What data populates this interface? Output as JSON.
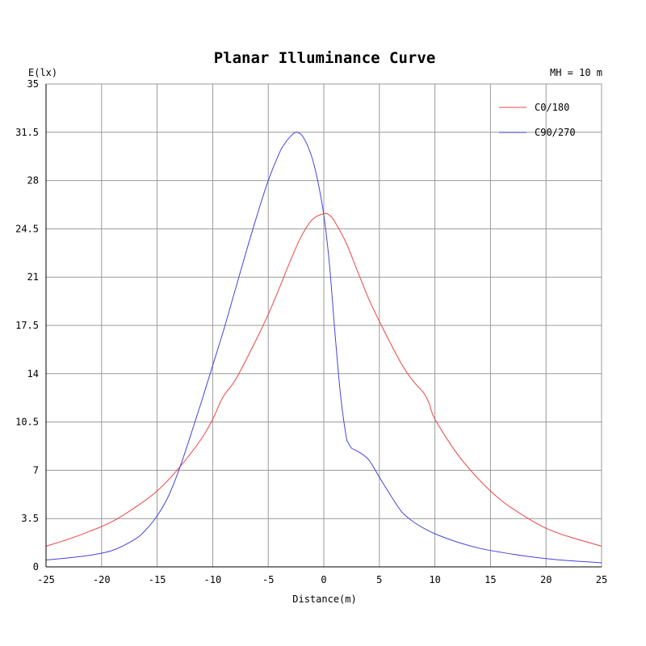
{
  "chart_data": {
    "type": "line",
    "title": "Planar Illuminance Curve",
    "ylabel": "E(lx)",
    "xlabel": "Distance(m)",
    "annotation": "MH = 10 m",
    "xlim": [
      -25,
      25
    ],
    "ylim": [
      0,
      35
    ],
    "xticks": [
      -25,
      -20,
      -15,
      -10,
      -5,
      0,
      5,
      10,
      15,
      20,
      25
    ],
    "yticks": [
      0,
      3.5,
      7,
      10.5,
      14,
      17.5,
      21,
      24.5,
      28,
      31.5,
      35
    ],
    "grid": true,
    "legend_position": "top-right",
    "colors": {
      "c0_180": "#ee4444",
      "c90_270": "#4444dd",
      "grid": "#999999",
      "axis": "#000000"
    },
    "series": [
      {
        "name": "C0/180",
        "color": "#ee4444",
        "x": [
          -25,
          -23,
          -21,
          -19,
          -17,
          -15,
          -13,
          -11,
          -10,
          -9.5,
          -9,
          -8,
          -7,
          -6,
          -5,
          -4,
          -3,
          -2,
          -1,
          0,
          0.5,
          1,
          2,
          3,
          4,
          5,
          6,
          7,
          8,
          9,
          9.5,
          10,
          12,
          14,
          16,
          18,
          20,
          22,
          25
        ],
        "y": [
          1.5,
          2.0,
          2.6,
          3.3,
          4.3,
          5.5,
          7.2,
          9.3,
          10.7,
          11.6,
          12.4,
          13.5,
          15.0,
          16.6,
          18.3,
          20.2,
          22.2,
          24.0,
          25.2,
          25.6,
          25.5,
          25.0,
          23.5,
          21.5,
          19.5,
          17.8,
          16.2,
          14.7,
          13.5,
          12.6,
          11.8,
          10.7,
          8.2,
          6.3,
          4.8,
          3.7,
          2.8,
          2.2,
          1.5
        ]
      },
      {
        "name": "C90/270",
        "color": "#4444dd",
        "x": [
          -25,
          -23,
          -21,
          -19,
          -17,
          -16,
          -15,
          -14,
          -13,
          -12,
          -11,
          -10,
          -9,
          -8,
          -7,
          -6,
          -5,
          -4,
          -3.5,
          -3,
          -2.5,
          -2,
          -1.5,
          -1,
          -0.5,
          0,
          0.5,
          1,
          1.5,
          2,
          2.2,
          2.5,
          3,
          4,
          5,
          6,
          7,
          8,
          9,
          10,
          12,
          14,
          16,
          18,
          20,
          22,
          25
        ],
        "y": [
          0.5,
          0.65,
          0.85,
          1.2,
          2.0,
          2.7,
          3.7,
          5.1,
          7.1,
          9.5,
          12.0,
          14.6,
          17.2,
          20.0,
          22.8,
          25.5,
          28.0,
          30.0,
          30.7,
          31.2,
          31.5,
          31.3,
          30.6,
          29.5,
          27.8,
          25.5,
          22.0,
          17.0,
          12.5,
          9.5,
          9.0,
          8.6,
          8.4,
          7.8,
          6.5,
          5.2,
          4.0,
          3.3,
          2.8,
          2.4,
          1.8,
          1.35,
          1.05,
          0.8,
          0.6,
          0.45,
          0.3
        ]
      }
    ]
  }
}
